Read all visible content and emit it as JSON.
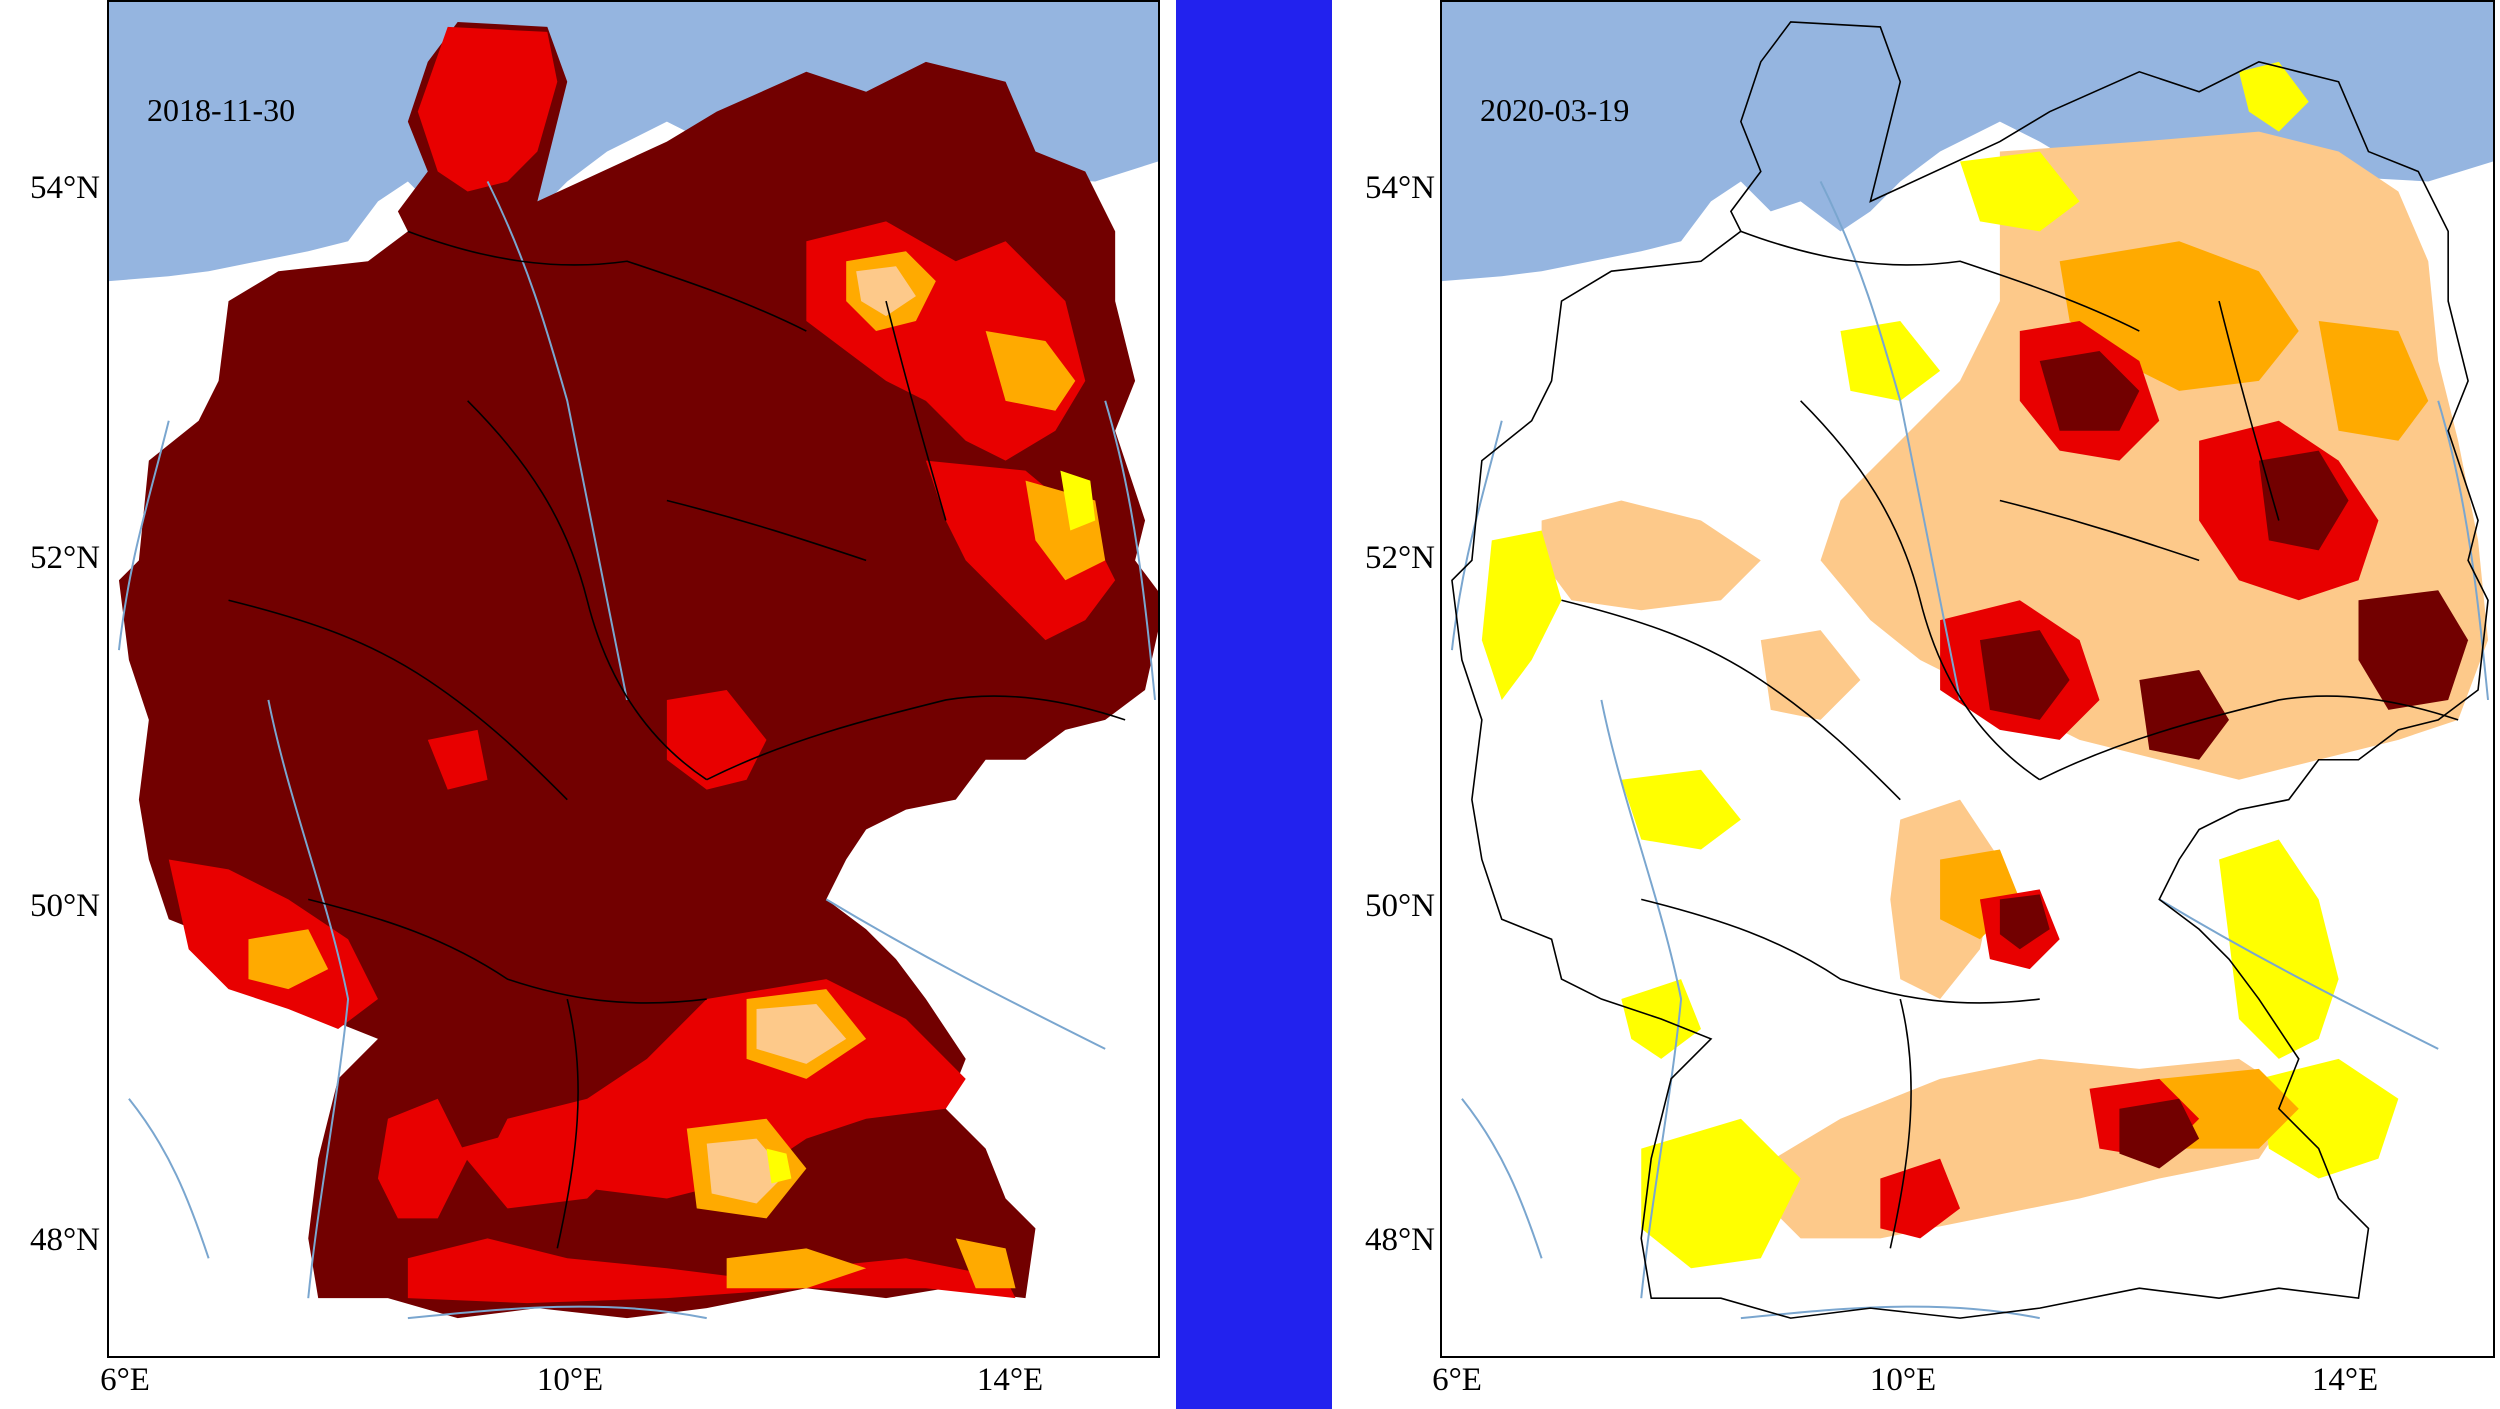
{
  "panels": [
    {
      "date": "2018-11-30",
      "lat_ticks": [
        "54°N",
        "52°N",
        "50°N",
        "48°N"
      ],
      "lon_ticks": [
        "6°E",
        "10°E",
        "14°E"
      ]
    },
    {
      "date": "2020-03-19",
      "lat_ticks": [
        "54°N",
        "52°N",
        "50°N",
        "48°N"
      ],
      "lon_ticks": [
        "6°E",
        "10°E",
        "14°E"
      ]
    }
  ],
  "colors": {
    "sea": "#95b5e0",
    "land": "#ffffff",
    "divider": "#2222ee",
    "dark_red": "#720000",
    "red": "#e80000",
    "orange": "#ffaa00",
    "light_orange": "#fdc98a",
    "yellow": "#ffff00",
    "river": "#7aa6cf",
    "border": "#000000"
  }
}
